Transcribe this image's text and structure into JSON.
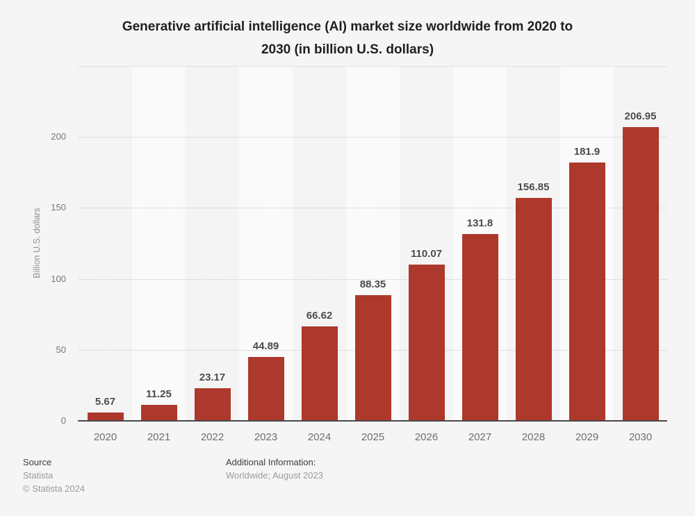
{
  "header": {
    "title_lines": [
      "Generative artificial intelligence (AI) market size worldwide from 2020 to",
      "2030 (in billion U.S. dollars)"
    ]
  },
  "chart_data": {
    "type": "bar",
    "title": "Generative artificial intelligence (AI) market size worldwide from 2020 to 2030 (in billion U.S. dollars)",
    "categories": [
      "2020",
      "2021",
      "2022",
      "2023",
      "2024",
      "2025",
      "2026",
      "2027",
      "2028",
      "2029",
      "2030"
    ],
    "values": [
      5.67,
      11.25,
      23.17,
      44.89,
      66.62,
      88.35,
      110.07,
      131.8,
      156.85,
      181.9,
      206.95
    ],
    "value_labels": [
      "5.67",
      "11.25",
      "23.17",
      "44.89",
      "66.62",
      "88.35",
      "110.07",
      "131.8",
      "156.85",
      "181.9",
      "206.95"
    ],
    "xlabel": "",
    "ylabel": "Billion U.S. dollars",
    "ylim": [
      0,
      250
    ],
    "yticks": [
      0,
      50,
      100,
      150,
      200
    ],
    "gridlines": [
      50,
      100,
      150,
      200,
      250
    ],
    "grid": "horizontal dotted",
    "legend": "none"
  },
  "footer": {
    "source_heading": "Source",
    "source_name": "Statista",
    "copyright": "© Statista 2024",
    "additional_heading": "Additional Information:",
    "additional_text": "Worldwide; August 2023"
  },
  "colors": {
    "bar": "#ad382c",
    "background": "#f5f5f5",
    "band_dark": "#f4f4f4",
    "band_light": "#fafafa",
    "axis_line": "#484848",
    "gridline": "#c9c9c9",
    "title_text": "#1f1f1f",
    "value_label_text": "#4a4a4a",
    "tick_text": "#767676",
    "footer_dark_text": "#3d3d3d",
    "footer_gray_text": "#9b9b9b"
  }
}
